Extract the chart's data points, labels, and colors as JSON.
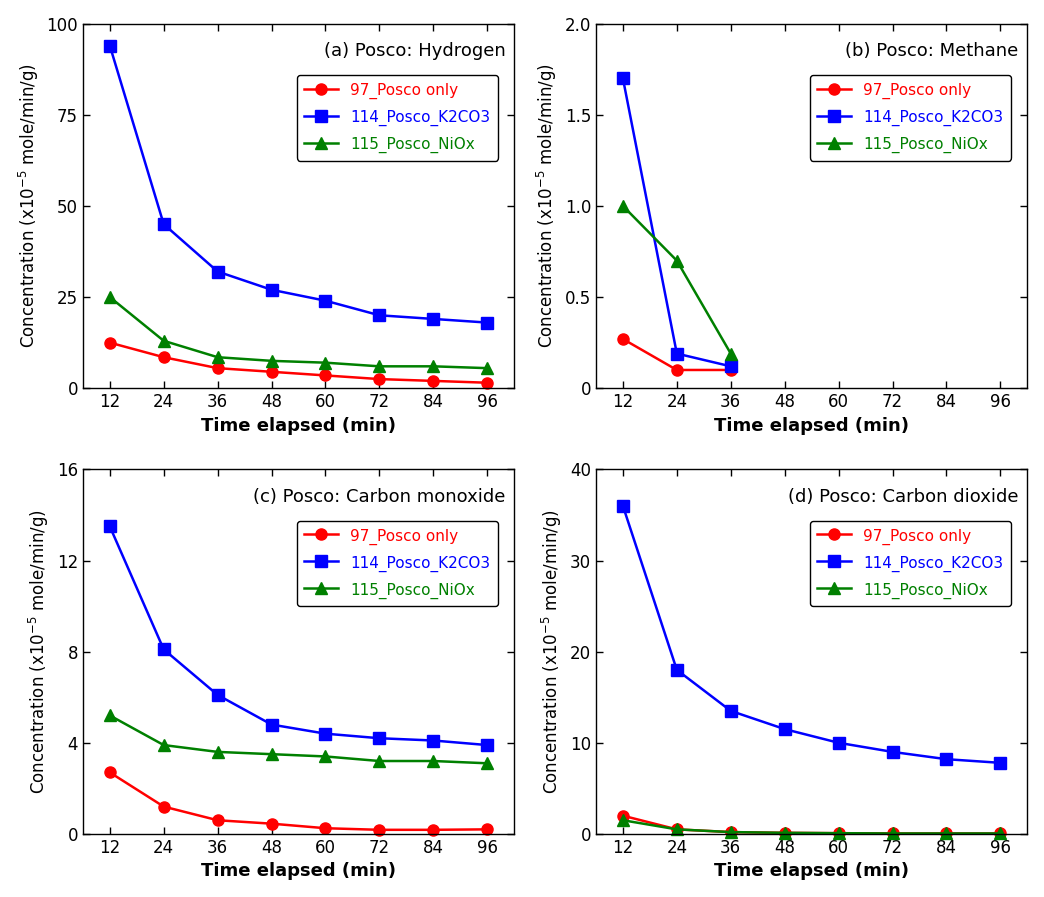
{
  "subplot_a": {
    "title": "(a) Posco: Hydrogen",
    "ylabel": "Concentration (x10$^{-5}$ mole/min/g)",
    "xlabel": "Time elapsed (min)",
    "ylim": [
      0,
      100
    ],
    "yticks": [
      0,
      25,
      50,
      75,
      100
    ],
    "series": {
      "97_Posco only": {
        "x": [
          12,
          24,
          36,
          48,
          60,
          72,
          84,
          96
        ],
        "y": [
          12.5,
          8.5,
          5.5,
          4.5,
          3.5,
          2.5,
          2.0,
          1.5
        ],
        "color": "#ff0000",
        "marker": "o"
      },
      "114_Posco_K2CO3": {
        "x": [
          12,
          24,
          36,
          48,
          60,
          72,
          84,
          96
        ],
        "y": [
          94,
          45,
          32,
          27,
          24,
          20,
          19,
          18
        ],
        "color": "#0000ff",
        "marker": "s"
      },
      "115_Posco_NiOx": {
        "x": [
          12,
          24,
          36,
          48,
          60,
          72,
          84,
          96
        ],
        "y": [
          25,
          13,
          8.5,
          7.5,
          7.0,
          6.0,
          6.0,
          5.5
        ],
        "color": "#008000",
        "marker": "^"
      }
    }
  },
  "subplot_b": {
    "title": "(b) Posco: Methane",
    "ylabel": "Concentration (x10$^{-5}$ mole/min/g)",
    "xlabel": "Time elapsed (min)",
    "ylim": [
      0,
      2.0
    ],
    "yticks": [
      0,
      0.5,
      1.0,
      1.5,
      2.0
    ],
    "series": {
      "97_Posco only": {
        "x": [
          12,
          24,
          36
        ],
        "y": [
          0.27,
          0.1,
          0.1
        ],
        "color": "#ff0000",
        "marker": "o"
      },
      "114_Posco_K2CO3": {
        "x": [
          12,
          24,
          36
        ],
        "y": [
          1.7,
          0.19,
          0.12
        ],
        "color": "#0000ff",
        "marker": "s"
      },
      "115_Posco_NiOx": {
        "x": [
          12,
          24,
          36
        ],
        "y": [
          1.0,
          0.7,
          0.19
        ],
        "color": "#008000",
        "marker": "^"
      }
    }
  },
  "subplot_c": {
    "title": "(c) Posco: Carbon monoxide",
    "ylabel": "Concentration (x10$^{-5}$ mole/min/g)",
    "xlabel": "Time elapsed (min)",
    "ylim": [
      0,
      16
    ],
    "yticks": [
      0,
      4,
      8,
      12,
      16
    ],
    "series": {
      "97_Posco only": {
        "x": [
          12,
          24,
          36,
          48,
          60,
          72,
          84,
          96
        ],
        "y": [
          2.7,
          1.2,
          0.6,
          0.45,
          0.25,
          0.18,
          0.18,
          0.2
        ],
        "color": "#ff0000",
        "marker": "o"
      },
      "114_Posco_K2CO3": {
        "x": [
          12,
          24,
          36,
          48,
          60,
          72,
          84,
          96
        ],
        "y": [
          13.5,
          8.1,
          6.1,
          4.8,
          4.4,
          4.2,
          4.1,
          3.9
        ],
        "color": "#0000ff",
        "marker": "s"
      },
      "115_Posco_NiOx": {
        "x": [
          12,
          24,
          36,
          48,
          60,
          72,
          84,
          96
        ],
        "y": [
          5.2,
          3.9,
          3.6,
          3.5,
          3.4,
          3.2,
          3.2,
          3.1
        ],
        "color": "#008000",
        "marker": "^"
      }
    }
  },
  "subplot_d": {
    "title": "(d) Posco: Carbon dioxide",
    "ylabel": "Concentration (x10$^{-5}$ mole/min/g)",
    "xlabel": "Time elapsed (min)",
    "ylim": [
      0,
      40
    ],
    "yticks": [
      0,
      10,
      20,
      30,
      40
    ],
    "series": {
      "97_Posco only": {
        "x": [
          12,
          24,
          36,
          48,
          60,
          72,
          84,
          96
        ],
        "y": [
          2.0,
          0.5,
          0.2,
          0.12,
          0.08,
          0.05,
          0.05,
          0.05
        ],
        "color": "#ff0000",
        "marker": "o"
      },
      "114_Posco_K2CO3": {
        "x": [
          12,
          24,
          36,
          48,
          60,
          72,
          84,
          96
        ],
        "y": [
          36,
          18,
          13.5,
          11.5,
          10.0,
          9.0,
          8.2,
          7.8
        ],
        "color": "#0000ff",
        "marker": "s"
      },
      "115_Posco_NiOx": {
        "x": [
          12,
          24,
          36,
          48,
          60,
          72,
          84,
          96
        ],
        "y": [
          1.5,
          0.5,
          0.2,
          0.12,
          0.08,
          0.05,
          0.05,
          0.05
        ],
        "color": "#008000",
        "marker": "^"
      }
    }
  },
  "legend_labels": [
    "97_Posco only",
    "114_Posco_K2CO3",
    "115_Posco_NiOx"
  ],
  "legend_colors": [
    "#ff0000",
    "#0000ff",
    "#008000"
  ],
  "legend_markers": [
    "o",
    "s",
    "^"
  ],
  "xticks": [
    12,
    24,
    36,
    48,
    60,
    72,
    84,
    96
  ],
  "markersize": 8,
  "linewidth": 1.8,
  "title_fontsize": 13,
  "label_fontsize": 13,
  "tick_fontsize": 12,
  "legend_fontsize": 11
}
